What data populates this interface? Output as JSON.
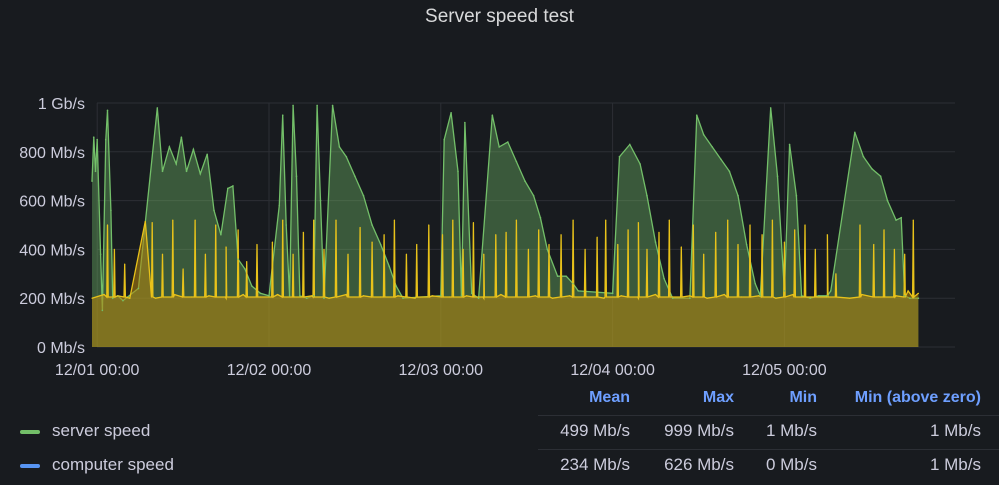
{
  "title": "Server speed test",
  "chart_data": {
    "type": "area",
    "title": "Server speed test",
    "x": [
      "12/01 00:00",
      "12/02 00:00",
      "12/03 00:00",
      "12/04 00:00",
      "12/05 00:00"
    ],
    "x_domain_days": [
      -0.03,
      5.0
    ],
    "y_ticks": [
      "0 Mb/s",
      "200 Mb/s",
      "400 Mb/s",
      "600 Mb/s",
      "800 Mb/s",
      "1 Gb/s"
    ],
    "ylim": [
      0,
      1000
    ],
    "y_unit": "Mb/s",
    "grid": true,
    "legend_position": "bottom",
    "series": [
      {
        "name": "server speed",
        "color": "#73bf69",
        "points": [
          [
            -0.03,
            680
          ],
          [
            -0.02,
            860
          ],
          [
            -0.01,
            720
          ],
          [
            0.0,
            850
          ],
          [
            0.02,
            380
          ],
          [
            0.03,
            150
          ],
          [
            0.05,
            850
          ],
          [
            0.06,
            970
          ],
          [
            0.08,
            560
          ],
          [
            0.09,
            200
          ],
          [
            0.12,
            210
          ],
          [
            0.15,
            190
          ],
          [
            0.24,
            240
          ],
          [
            0.35,
            980
          ],
          [
            0.38,
            720
          ],
          [
            0.42,
            820
          ],
          [
            0.46,
            750
          ],
          [
            0.49,
            860
          ],
          [
            0.52,
            720
          ],
          [
            0.56,
            810
          ],
          [
            0.6,
            710
          ],
          [
            0.64,
            790
          ],
          [
            0.68,
            560
          ],
          [
            0.72,
            460
          ],
          [
            0.76,
            650
          ],
          [
            0.79,
            660
          ],
          [
            0.82,
            360
          ],
          [
            0.86,
            320
          ],
          [
            0.9,
            250
          ],
          [
            0.95,
            220
          ],
          [
            1.0,
            210
          ],
          [
            1.06,
            580
          ],
          [
            1.08,
            950
          ],
          [
            1.1,
            500
          ],
          [
            1.12,
            210
          ],
          [
            1.14,
            990
          ],
          [
            1.16,
            700
          ],
          [
            1.18,
            210
          ],
          [
            1.22,
            200
          ],
          [
            1.26,
            210
          ],
          [
            1.28,
            990
          ],
          [
            1.3,
            600
          ],
          [
            1.32,
            200
          ],
          [
            1.37,
            990
          ],
          [
            1.41,
            820
          ],
          [
            1.45,
            780
          ],
          [
            1.5,
            700
          ],
          [
            1.55,
            620
          ],
          [
            1.6,
            500
          ],
          [
            1.65,
            420
          ],
          [
            1.7,
            330
          ],
          [
            1.74,
            250
          ],
          [
            1.78,
            200
          ],
          [
            2.0,
            210
          ],
          [
            2.02,
            850
          ],
          [
            2.06,
            960
          ],
          [
            2.1,
            720
          ],
          [
            2.12,
            210
          ],
          [
            2.14,
            920
          ],
          [
            2.18,
            220
          ],
          [
            2.22,
            200
          ],
          [
            2.3,
            950
          ],
          [
            2.34,
            820
          ],
          [
            2.39,
            840
          ],
          [
            2.44,
            760
          ],
          [
            2.49,
            680
          ],
          [
            2.54,
            620
          ],
          [
            2.58,
            530
          ],
          [
            2.62,
            400
          ],
          [
            2.68,
            290
          ],
          [
            2.73,
            290
          ],
          [
            2.77,
            260
          ],
          [
            2.8,
            230
          ],
          [
            3.0,
            220
          ],
          [
            3.04,
            780
          ],
          [
            3.1,
            830
          ],
          [
            3.16,
            750
          ],
          [
            3.2,
            620
          ],
          [
            3.25,
            430
          ],
          [
            3.3,
            280
          ],
          [
            3.35,
            200
          ],
          [
            3.45,
            200
          ],
          [
            3.49,
            950
          ],
          [
            3.53,
            870
          ],
          [
            3.58,
            820
          ],
          [
            3.63,
            770
          ],
          [
            3.68,
            720
          ],
          [
            3.73,
            620
          ],
          [
            3.78,
            420
          ],
          [
            3.83,
            260
          ],
          [
            3.86,
            210
          ],
          [
            3.92,
            980
          ],
          [
            3.96,
            700
          ],
          [
            4.0,
            230
          ],
          [
            4.03,
            830
          ],
          [
            4.07,
            620
          ],
          [
            4.1,
            210
          ],
          [
            4.15,
            200
          ],
          [
            4.2,
            210
          ],
          [
            4.25,
            210
          ],
          [
            4.27,
            230
          ],
          [
            4.41,
            880
          ],
          [
            4.46,
            780
          ],
          [
            4.51,
            730
          ],
          [
            4.56,
            700
          ],
          [
            4.6,
            600
          ],
          [
            4.65,
            520
          ],
          [
            4.68,
            530
          ],
          [
            4.7,
            210
          ],
          [
            4.73,
            200
          ],
          [
            4.78,
            200
          ]
        ]
      },
      {
        "name": "computer speed",
        "color": "#5794f2",
        "points": [
          [
            -0.03,
            200
          ],
          [
            0.04,
            215
          ],
          [
            0.12,
            210
          ],
          [
            0.19,
            200
          ],
          [
            0.28,
            515
          ],
          [
            0.34,
            200
          ],
          [
            0.45,
            215
          ],
          [
            0.55,
            205
          ],
          [
            0.65,
            210
          ],
          [
            0.75,
            200
          ],
          [
            0.85,
            215
          ],
          [
            0.95,
            205
          ],
          [
            1.05,
            215
          ],
          [
            1.15,
            205
          ],
          [
            1.25,
            210
          ],
          [
            1.35,
            200
          ],
          [
            1.45,
            215
          ],
          [
            1.55,
            210
          ],
          [
            1.65,
            205
          ],
          [
            1.75,
            210
          ],
          [
            1.85,
            200
          ],
          [
            1.95,
            210
          ],
          [
            2.05,
            205
          ],
          [
            2.15,
            210
          ],
          [
            2.25,
            200
          ],
          [
            2.35,
            215
          ],
          [
            2.45,
            205
          ],
          [
            2.55,
            210
          ],
          [
            2.65,
            200
          ],
          [
            2.75,
            210
          ],
          [
            2.85,
            205
          ],
          [
            2.95,
            200
          ],
          [
            3.05,
            210
          ],
          [
            3.15,
            200
          ],
          [
            3.25,
            215
          ],
          [
            3.35,
            205
          ],
          [
            3.45,
            210
          ],
          [
            3.55,
            200
          ],
          [
            3.65,
            215
          ],
          [
            3.75,
            205
          ],
          [
            3.85,
            210
          ],
          [
            3.95,
            200
          ],
          [
            4.05,
            215
          ],
          [
            4.15,
            205
          ],
          [
            4.25,
            215
          ],
          [
            4.38,
            200
          ],
          [
            4.45,
            215
          ],
          [
            4.55,
            205
          ],
          [
            4.65,
            210
          ],
          [
            4.72,
            230
          ],
          [
            4.78,
            220
          ]
        ]
      }
    ],
    "spikes_computer_speed": [
      [
        0.06,
        500
      ],
      [
        0.1,
        400
      ],
      [
        0.16,
        340
      ],
      [
        0.32,
        510
      ],
      [
        0.38,
        380
      ],
      [
        0.44,
        520
      ],
      [
        0.5,
        320
      ],
      [
        0.57,
        520
      ],
      [
        0.63,
        380
      ],
      [
        0.69,
        500
      ],
      [
        0.75,
        410
      ],
      [
        0.82,
        480
      ],
      [
        0.87,
        350
      ],
      [
        0.93,
        420
      ],
      [
        1.02,
        430
      ],
      [
        1.08,
        520
      ],
      [
        1.14,
        380
      ],
      [
        1.2,
        470
      ],
      [
        1.26,
        520
      ],
      [
        1.32,
        400
      ],
      [
        1.39,
        520
      ],
      [
        1.46,
        380
      ],
      [
        1.53,
        490
      ],
      [
        1.6,
        430
      ],
      [
        1.67,
        460
      ],
      [
        1.73,
        520
      ],
      [
        1.8,
        380
      ],
      [
        1.86,
        420
      ],
      [
        1.93,
        500
      ],
      [
        2.01,
        460
      ],
      [
        2.07,
        520
      ],
      [
        2.13,
        400
      ],
      [
        2.19,
        510
      ],
      [
        2.25,
        380
      ],
      [
        2.32,
        460
      ],
      [
        2.38,
        470
      ],
      [
        2.44,
        520
      ],
      [
        2.51,
        400
      ],
      [
        2.57,
        480
      ],
      [
        2.63,
        420
      ],
      [
        2.7,
        460
      ],
      [
        2.77,
        520
      ],
      [
        2.84,
        400
      ],
      [
        2.91,
        450
      ],
      [
        2.96,
        520
      ],
      [
        3.03,
        420
      ],
      [
        3.09,
        480
      ],
      [
        3.15,
        510
      ],
      [
        3.2,
        400
      ],
      [
        3.27,
        470
      ],
      [
        3.33,
        520
      ],
      [
        3.4,
        410
      ],
      [
        3.47,
        500
      ],
      [
        3.53,
        380
      ],
      [
        3.6,
        470
      ],
      [
        3.67,
        520
      ],
      [
        3.73,
        420
      ],
      [
        3.8,
        500
      ],
      [
        3.87,
        460
      ],
      [
        3.93,
        520
      ],
      [
        4.0,
        430
      ],
      [
        4.06,
        480
      ],
      [
        4.12,
        500
      ],
      [
        4.18,
        400
      ],
      [
        4.25,
        460
      ],
      [
        4.3,
        300
      ],
      [
        4.44,
        500
      ],
      [
        4.52,
        420
      ],
      [
        4.58,
        480
      ],
      [
        4.64,
        400
      ],
      [
        4.7,
        380
      ],
      [
        4.75,
        520
      ]
    ]
  },
  "legend": {
    "headers": [
      "Mean",
      "Max",
      "Min",
      "Min (above zero)"
    ],
    "rows": [
      {
        "name": "server speed",
        "color": "#73bf69",
        "mean": "499 Mb/s",
        "max": "999 Mb/s",
        "min": "1 Mb/s",
        "min_above_zero": "1 Mb/s"
      },
      {
        "name": "computer speed",
        "color": "#5794f2",
        "mean": "234 Mb/s",
        "max": "626 Mb/s",
        "min": "0 Mb/s",
        "min_above_zero": "1 Mb/s"
      }
    ]
  }
}
